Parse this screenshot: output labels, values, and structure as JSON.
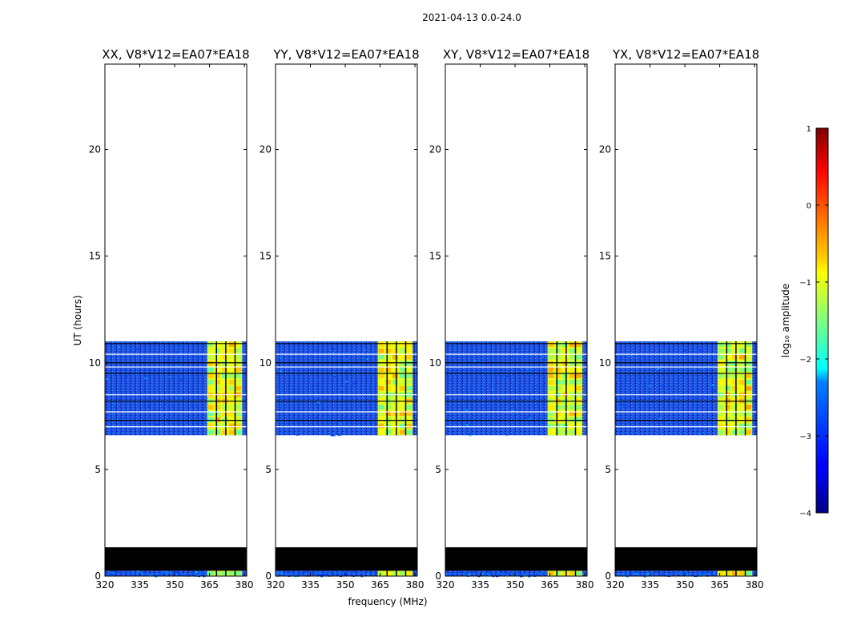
{
  "figure": {
    "suptitle": "2021-04-13 0.0-24.0",
    "ylabel": "UT (hours)",
    "xlabel": "frequency (MHz)"
  },
  "chart_data": {
    "type": "heatmap",
    "x_range_mhz": [
      320,
      381
    ],
    "y_range_hours": [
      0,
      24
    ],
    "x_ticks": [
      320,
      335,
      350,
      365,
      380
    ],
    "y_ticks": [
      0,
      5,
      10,
      15,
      20
    ],
    "panels": [
      {
        "title": "XX, V8*V12=EA07*EA18"
      },
      {
        "title": "YY, V8*V12=EA07*EA18"
      },
      {
        "title": "XY, V8*V12=EA07*EA18"
      },
      {
        "title": "YX, V8*V12=EA07*EA18"
      }
    ],
    "data_ut_ranges_hours": [
      [
        0.0,
        0.25
      ],
      [
        6.6,
        11.0
      ]
    ],
    "flagged_ut_ranges_hours": [
      [
        0.25,
        1.35
      ]
    ],
    "rfi_band_mhz": [
      364,
      379
    ],
    "rfi_channel_gaps_mhz": [
      368,
      372,
      376
    ],
    "background_log_amplitude": -3.0,
    "rfi_log_amplitude": -1.0,
    "colorbar": {
      "label": "log₁₀ amplitude",
      "range": [
        -4,
        1
      ],
      "ticks": [
        -4,
        -3,
        -2,
        -1,
        0,
        1
      ],
      "colormap": "jet"
    }
  }
}
